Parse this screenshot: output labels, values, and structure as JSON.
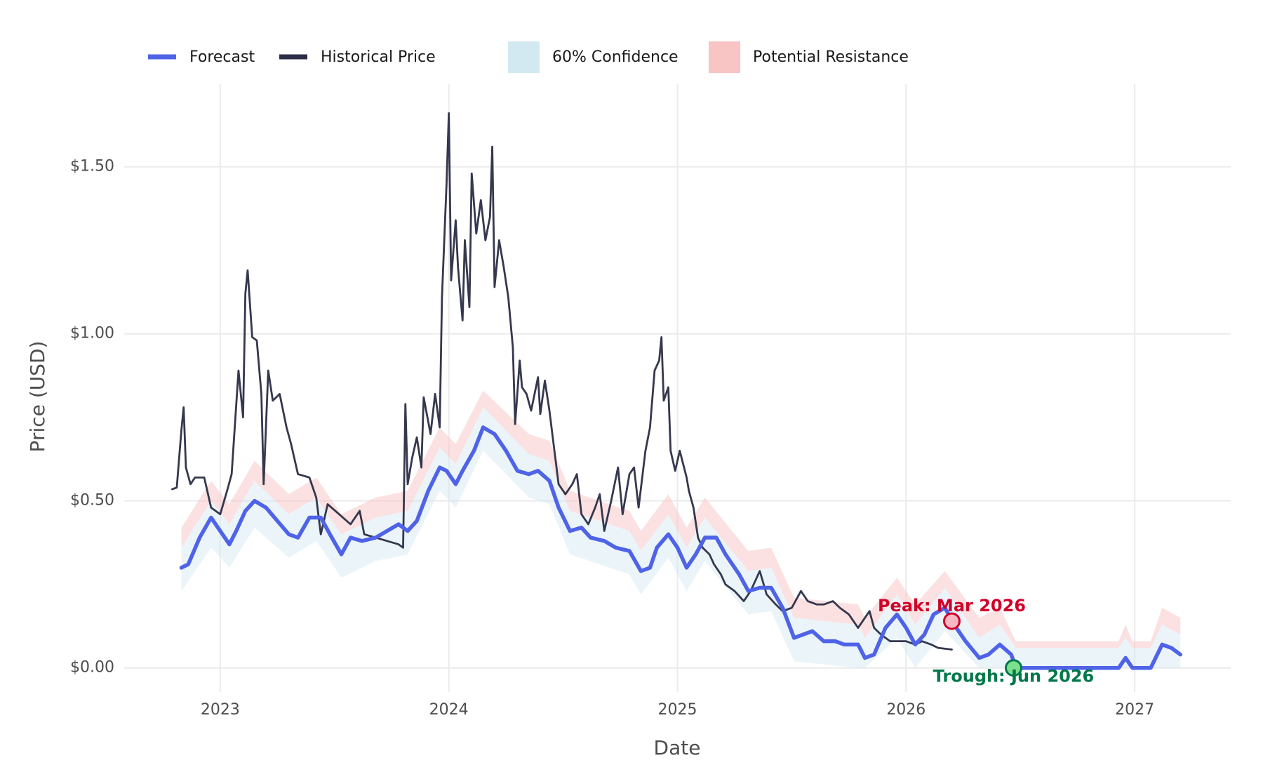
{
  "chart_data": {
    "type": "line",
    "xlabel": "Date",
    "ylabel": "Price (USD)",
    "xlim": [
      2022.58,
      2027.42
    ],
    "xticks": [
      2023,
      2024,
      2025,
      2026,
      2027
    ],
    "ylim": [
      -0.072,
      1.747
    ],
    "yticks": [
      {
        "value": 0,
        "label": "$0.00"
      },
      {
        "value": 0.5,
        "label": "$0.50"
      },
      {
        "value": 1,
        "label": "$1.00"
      },
      {
        "value": 1.5,
        "label": "$1.50"
      }
    ],
    "grid": true,
    "series": [
      {
        "name": "Forecast",
        "color": "#4f63e8",
        "x": [
          2022.83,
          2022.86,
          2022.91,
          2022.96,
          2022.99,
          2023.04,
          2023.07,
          2023.11,
          2023.15,
          2023.2,
          2023.25,
          2023.3,
          2023.34,
          2023.39,
          2023.44,
          2023.48,
          2023.53,
          2023.57,
          2023.62,
          2023.68,
          2023.73,
          2023.78,
          2023.82,
          2023.86,
          2023.91,
          2023.96,
          2023.99,
          2024.03,
          2024.06,
          2024.11,
          2024.15,
          2024.2,
          2024.25,
          2024.3,
          2024.35,
          2024.39,
          2024.44,
          2024.48,
          2024.53,
          2024.58,
          2024.62,
          2024.68,
          2024.73,
          2024.79,
          2024.84,
          2024.88,
          2024.91,
          2024.96,
          2025.0,
          2025.04,
          2025.08,
          2025.12,
          2025.17,
          2025.21,
          2025.27,
          2025.31,
          2025.36,
          2025.41,
          2025.46,
          2025.51,
          2025.55,
          2025.59,
          2025.64,
          2025.69,
          2025.73,
          2025.79,
          2025.82,
          2025.86,
          2025.91,
          2025.96,
          2026.0,
          2026.04,
          2026.08,
          2026.12,
          2026.17,
          2026.21,
          2026.26,
          2026.32,
          2026.36,
          2026.41,
          2026.46,
          2026.48,
          2026.93,
          2026.96,
          2026.99,
          2027.07,
          2027.12,
          2027.16,
          2027.2
        ],
        "values": [
          0.3,
          0.31,
          0.39,
          0.45,
          0.42,
          0.37,
          0.41,
          0.47,
          0.5,
          0.48,
          0.44,
          0.4,
          0.39,
          0.45,
          0.45,
          0.4,
          0.34,
          0.39,
          0.38,
          0.39,
          0.41,
          0.43,
          0.41,
          0.44,
          0.53,
          0.6,
          0.59,
          0.55,
          0.59,
          0.65,
          0.72,
          0.7,
          0.65,
          0.59,
          0.58,
          0.59,
          0.56,
          0.48,
          0.41,
          0.42,
          0.39,
          0.38,
          0.36,
          0.35,
          0.29,
          0.3,
          0.36,
          0.4,
          0.36,
          0.3,
          0.34,
          0.39,
          0.39,
          0.34,
          0.28,
          0.23,
          0.24,
          0.24,
          0.18,
          0.09,
          0.1,
          0.11,
          0.08,
          0.08,
          0.07,
          0.07,
          0.03,
          0.04,
          0.12,
          0.16,
          0.12,
          0.07,
          0.1,
          0.16,
          0.18,
          0.13,
          0.08,
          0.03,
          0.04,
          0.07,
          0.04,
          0.0,
          0.0,
          0.03,
          0.0,
          0.0,
          0.07,
          0.06,
          0.04
        ]
      },
      {
        "name": "Historical Price",
        "color": "#2a2d45",
        "x": [
          2022.79,
          2022.81,
          2022.83,
          2022.84,
          2022.85,
          2022.87,
          2022.89,
          2022.93,
          2022.96,
          2023.0,
          2023.03,
          2023.05,
          2023.08,
          2023.1,
          2023.11,
          2023.12,
          2023.14,
          2023.16,
          2023.18,
          2023.19,
          2023.21,
          2023.23,
          2023.26,
          2023.29,
          2023.31,
          2023.34,
          2023.39,
          2023.42,
          2023.44,
          2023.47,
          2023.52,
          2023.57,
          2023.61,
          2023.63,
          2023.68,
          2023.73,
          2023.78,
          2023.8,
          2023.81,
          2023.82,
          2023.84,
          2023.86,
          2023.88,
          2023.89,
          2023.92,
          2023.94,
          2023.96,
          2023.97,
          2023.99,
          2024.0,
          2024.01,
          2024.03,
          2024.04,
          2024.06,
          2024.07,
          2024.09,
          2024.1,
          2024.12,
          2024.14,
          2024.16,
          2024.18,
          2024.19,
          2024.2,
          2024.22,
          2024.24,
          2024.26,
          2024.28,
          2024.29,
          2024.31,
          2024.32,
          2024.34,
          2024.36,
          2024.39,
          2024.4,
          2024.42,
          2024.44,
          2024.46,
          2024.48,
          2024.51,
          2024.54,
          2024.56,
          2024.58,
          2024.61,
          2024.64,
          2024.66,
          2024.68,
          2024.71,
          2024.74,
          2024.76,
          2024.79,
          2024.81,
          2024.83,
          2024.86,
          2024.88,
          2024.9,
          2024.92,
          2024.93,
          2024.94,
          2024.96,
          2024.97,
          2024.99,
          2025.01,
          2025.04,
          2025.05,
          2025.07,
          2025.09,
          2025.11,
          2025.14,
          2025.16,
          2025.19,
          2025.21,
          2025.25,
          2025.29,
          2025.32,
          2025.36,
          2025.39,
          2025.43,
          2025.46,
          2025.5,
          2025.54,
          2025.57,
          2025.61,
          2025.64,
          2025.68,
          2025.71,
          2025.75,
          2025.79,
          2025.81,
          2025.84,
          2025.86,
          2025.89,
          2025.93,
          2025.96,
          2026.0,
          2026.04,
          2026.07,
          2026.11,
          2026.14,
          2026.2
        ],
        "values": [
          0.535,
          0.54,
          0.71,
          0.78,
          0.6,
          0.55,
          0.57,
          0.57,
          0.48,
          0.46,
          0.53,
          0.58,
          0.89,
          0.75,
          1.12,
          1.19,
          0.99,
          0.98,
          0.82,
          0.55,
          0.89,
          0.8,
          0.82,
          0.72,
          0.67,
          0.58,
          0.57,
          0.51,
          0.4,
          0.49,
          0.46,
          0.43,
          0.47,
          0.4,
          0.39,
          0.38,
          0.37,
          0.36,
          0.79,
          0.55,
          0.63,
          0.69,
          0.6,
          0.81,
          0.7,
          0.82,
          0.72,
          1.11,
          1.45,
          1.66,
          1.16,
          1.34,
          1.2,
          1.04,
          1.28,
          1.08,
          1.48,
          1.3,
          1.4,
          1.28,
          1.35,
          1.56,
          1.14,
          1.28,
          1.2,
          1.11,
          0.96,
          0.73,
          0.92,
          0.84,
          0.82,
          0.77,
          0.87,
          0.76,
          0.86,
          0.77,
          0.66,
          0.55,
          0.52,
          0.55,
          0.58,
          0.46,
          0.43,
          0.48,
          0.52,
          0.41,
          0.5,
          0.6,
          0.46,
          0.58,
          0.6,
          0.48,
          0.65,
          0.72,
          0.89,
          0.92,
          0.99,
          0.8,
          0.84,
          0.65,
          0.59,
          0.65,
          0.57,
          0.53,
          0.48,
          0.39,
          0.36,
          0.34,
          0.31,
          0.28,
          0.25,
          0.23,
          0.2,
          0.23,
          0.29,
          0.22,
          0.19,
          0.17,
          0.18,
          0.23,
          0.2,
          0.19,
          0.19,
          0.2,
          0.18,
          0.16,
          0.12,
          0.14,
          0.17,
          0.12,
          0.1,
          0.08,
          0.08,
          0.08,
          0.07,
          0.08,
          0.07,
          0.06,
          0.055
        ]
      }
    ],
    "bands": [
      {
        "name": "60% Confidence",
        "color": "#d3e9f2",
        "x": [
          2022.83,
          2022.96,
          2023.04,
          2023.15,
          2023.3,
          2023.42,
          2023.53,
          2023.68,
          2023.82,
          2023.96,
          2024.03,
          2024.15,
          2024.35,
          2024.44,
          2024.53,
          2024.79,
          2024.84,
          2024.96,
          2025.04,
          2025.12,
          2025.31,
          2025.41,
          2025.51,
          2025.79,
          2025.82,
          2025.96,
          2026.04,
          2026.17,
          2026.32,
          2026.41,
          2026.48,
          2026.93,
          2026.96,
          2026.99,
          2027.07,
          2027.12,
          2027.2
        ],
        "lower": [
          0.23,
          0.36,
          0.3,
          0.42,
          0.33,
          0.38,
          0.27,
          0.32,
          0.34,
          0.53,
          0.48,
          0.65,
          0.51,
          0.49,
          0.34,
          0.28,
          0.22,
          0.33,
          0.23,
          0.32,
          0.16,
          0.17,
          0.02,
          0.0,
          0.0,
          0.09,
          0.0,
          0.11,
          0.0,
          0.0,
          0.0,
          0.0,
          0.0,
          0.0,
          0.0,
          0.0,
          0.0
        ],
        "upper": [
          0.36,
          0.5,
          0.43,
          0.56,
          0.46,
          0.51,
          0.4,
          0.45,
          0.47,
          0.66,
          0.61,
          0.78,
          0.64,
          0.62,
          0.47,
          0.41,
          0.35,
          0.46,
          0.36,
          0.45,
          0.29,
          0.3,
          0.15,
          0.13,
          0.09,
          0.22,
          0.13,
          0.24,
          0.09,
          0.13,
          0.06,
          0.06,
          0.09,
          0.06,
          0.06,
          0.13,
          0.1
        ]
      },
      {
        "name": "Potential Resistance",
        "color": "#f8c4c4",
        "x": [
          2022.83,
          2022.96,
          2023.04,
          2023.15,
          2023.3,
          2023.42,
          2023.53,
          2023.68,
          2023.82,
          2023.96,
          2024.03,
          2024.15,
          2024.35,
          2024.44,
          2024.53,
          2024.79,
          2024.84,
          2024.96,
          2025.04,
          2025.12,
          2025.31,
          2025.41,
          2025.51,
          2025.79,
          2025.82,
          2025.96,
          2026.04,
          2026.17,
          2026.32,
          2026.41,
          2026.48,
          2026.93,
          2026.96,
          2026.99,
          2027.07,
          2027.12,
          2027.2
        ],
        "lower": [
          0.36,
          0.5,
          0.43,
          0.56,
          0.46,
          0.51,
          0.4,
          0.45,
          0.47,
          0.66,
          0.61,
          0.78,
          0.64,
          0.62,
          0.47,
          0.41,
          0.35,
          0.46,
          0.36,
          0.45,
          0.29,
          0.3,
          0.15,
          0.13,
          0.09,
          0.22,
          0.13,
          0.24,
          0.09,
          0.13,
          0.06,
          0.06,
          0.09,
          0.06,
          0.06,
          0.13,
          0.1
        ],
        "upper": [
          0.42,
          0.56,
          0.49,
          0.62,
          0.52,
          0.57,
          0.46,
          0.51,
          0.53,
          0.72,
          0.67,
          0.83,
          0.7,
          0.68,
          0.53,
          0.47,
          0.41,
          0.52,
          0.42,
          0.51,
          0.35,
          0.36,
          0.21,
          0.19,
          0.15,
          0.27,
          0.19,
          0.29,
          0.15,
          0.18,
          0.08,
          0.08,
          0.13,
          0.08,
          0.08,
          0.18,
          0.15
        ]
      }
    ],
    "annotations": [
      {
        "text": "Peak: Mar 2026",
        "x": 2026.2,
        "y": 0.14,
        "color": "#d0002a",
        "marker_fill": "#f7b8c4",
        "position": "above"
      },
      {
        "text": "Trough: Jun 2026",
        "x": 2026.47,
        "y": 0.0,
        "color": "#00784a",
        "marker_fill": "#7be08d",
        "position": "below"
      }
    ]
  }
}
